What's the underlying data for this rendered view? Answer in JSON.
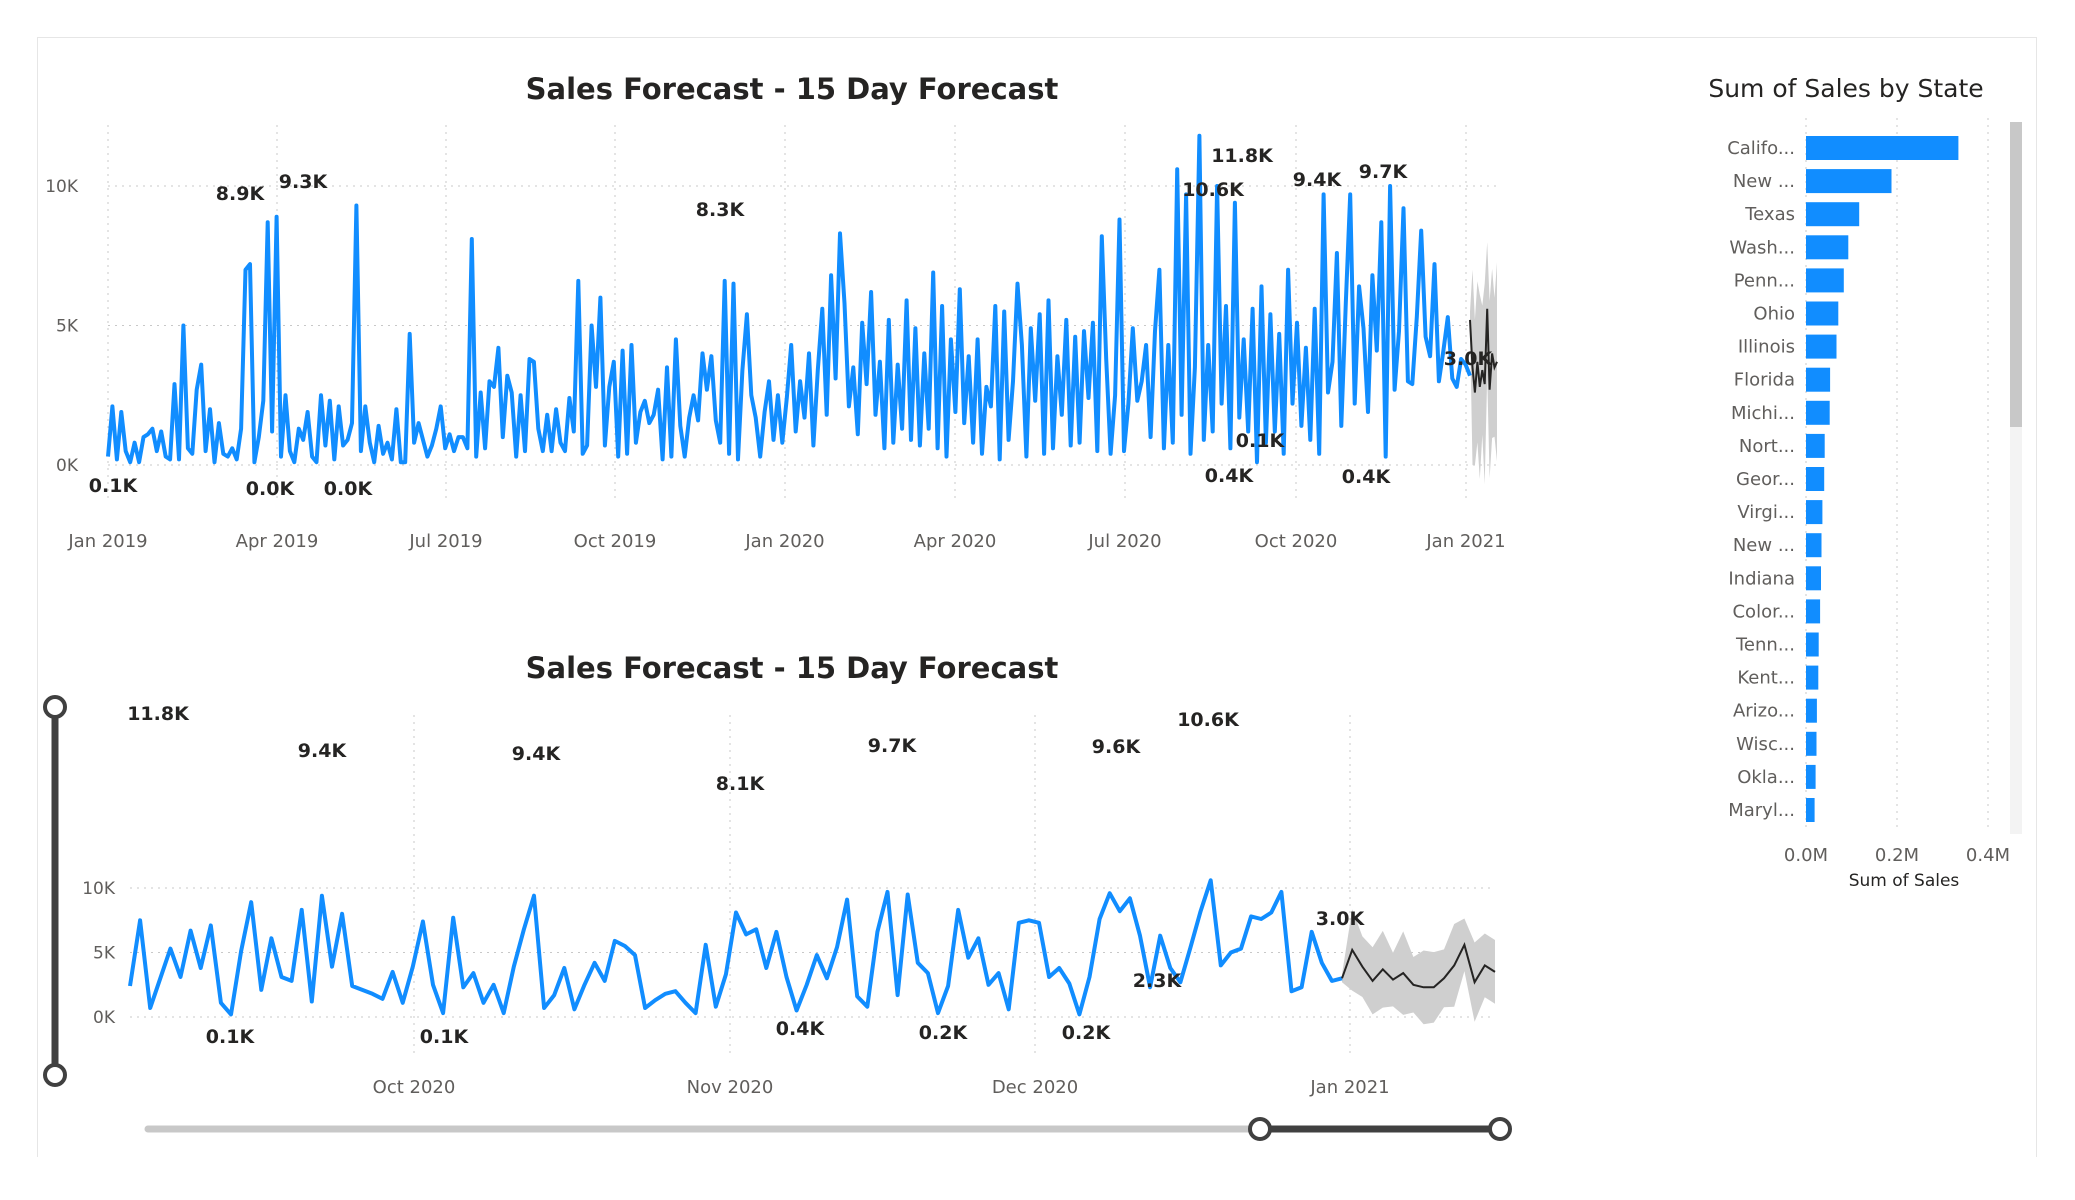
{
  "chart_data": [
    {
      "type": "line",
      "title": "Sales Forecast - 15 Day Forecast",
      "xlabel": "",
      "ylabel": "",
      "x_ticks": [
        "Jan 2019",
        "Apr 2019",
        "Jul 2019",
        "Oct 2019",
        "Jan 2020",
        "Apr 2020",
        "Jul 2020",
        "Oct 2020",
        "Jan 2021"
      ],
      "y_ticks": [
        "0K",
        "5K",
        "10K"
      ],
      "ylim": [
        -1000,
        11500
      ],
      "grid": "dotted",
      "series": [
        {
          "values": [
            300,
            2100,
            200,
            1900,
            500,
            100,
            800,
            100,
            1000,
            1100,
            1300,
            500,
            1200,
            300,
            200,
            2900,
            200,
            5000,
            600,
            400,
            2700,
            3600,
            500,
            2000,
            100,
            1500,
            400,
            300,
            600,
            200,
            1300,
            7000,
            7200,
            100,
            1000,
            2300,
            8700,
            1200,
            8900,
            300,
            2500,
            500,
            100,
            1300,
            900,
            1900,
            300,
            100,
            2500,
            700,
            2300,
            200,
            2100,
            700,
            900,
            1500,
            9300,
            500,
            2100,
            800,
            100,
            1400,
            400,
            800,
            200,
            2000,
            100,
            100,
            4700,
            800,
            1500,
            900,
            300,
            700,
            1300,
            2100,
            600,
            1100,
            500,
            1000,
            1000,
            600,
            8100,
            300,
            2600,
            600,
            3000,
            2800,
            4200,
            1000,
            3200,
            2600,
            300,
            2500,
            500,
            3800,
            3700,
            1300,
            500,
            1800,
            500,
            2000,
            800,
            500,
            2400,
            1200,
            6600,
            400,
            700,
            5000,
            2800,
            6000,
            700,
            2800,
            3700,
            300,
            4100,
            400,
            4300,
            800,
            1900,
            2300,
            1500,
            1800,
            2700,
            200,
            3500,
            300,
            4500,
            1400,
            300,
            1700,
            2500,
            1600,
            4000,
            2700,
            3900,
            1600,
            800,
            6600,
            400,
            6500,
            200,
            3400,
            5400,
            2500,
            1700,
            300,
            1900,
            3000,
            900,
            2500,
            800,
            2400,
            4300,
            1200,
            3000,
            1700,
            4000,
            700,
            3400,
            5600,
            1800,
            6800,
            3100,
            8300,
            5800,
            2100,
            3500,
            1100,
            5100,
            2900,
            6200,
            1800,
            3700,
            600,
            5200,
            800,
            3600,
            1300,
            5900,
            900,
            4900,
            700,
            4000,
            1300,
            6900,
            600,
            5700,
            300,
            4500,
            1900,
            6300,
            1500,
            3900,
            800,
            4500,
            400,
            2800,
            2100,
            5700,
            200,
            5500,
            900,
            3000,
            6500,
            4300,
            300,
            4900,
            2300,
            5400,
            400,
            5900,
            600,
            3900,
            1800,
            5200,
            700,
            4600,
            800,
            4800,
            2400,
            5100,
            500,
            8200,
            3800,
            400,
            2500,
            8800,
            500,
            2200,
            4900,
            2300,
            3000,
            4300,
            1000,
            4800,
            7000,
            600,
            4300,
            800,
            10600,
            1800,
            9700,
            400,
            3500,
            11800,
            900,
            4300,
            1200,
            10000,
            2200,
            5700,
            600,
            9400,
            1700,
            4500,
            1200,
            5600,
            100,
            6400,
            800,
            5400,
            1200,
            4700,
            400,
            7000,
            2200,
            5100,
            1400,
            4200,
            900,
            5600,
            400,
            9700,
            2600,
            3700,
            7600,
            1400,
            5800,
            9700,
            2200,
            6400,
            4900,
            1900,
            6800,
            4100,
            8700,
            300,
            10000,
            2700,
            4800,
            9200,
            3000,
            2900,
            5300,
            8400,
            4600,
            3900,
            7200,
            3000,
            4100,
            5300,
            3100,
            2800,
            3800,
            3600,
            3200
          ]
        },
        {
          "values": [
            5200,
            3500,
            2600,
            3700,
            2800,
            3400,
            2900,
            5600,
            2700,
            4000,
            3500,
            3700
          ]
        }
      ]
    },
    {
      "type": "line",
      "title": "Sales Forecast - 15 Day Forecast",
      "x_ticks": [
        "Oct 2020",
        "Nov 2020",
        "Dec 2020",
        "Jan 2021"
      ],
      "y_ticks": [
        "0K",
        "5K",
        "10K"
      ],
      "ylim": [
        -2000,
        12000
      ],
      "grid": "dotted",
      "series": [
        {
          "values": [
            2400,
            7500,
            700,
            3000,
            5300,
            3100,
            6700,
            3800,
            7100,
            1100,
            200,
            5100,
            8900,
            2100,
            6100,
            3100,
            2800,
            8300,
            1200,
            9400,
            3900,
            8000,
            2400,
            2100,
            1800,
            1400,
            3500,
            1100,
            3900,
            7400,
            2500,
            300,
            7700,
            2300,
            3400,
            1100,
            2500,
            300,
            3900,
            6800,
            9400,
            700,
            1700,
            3800,
            600,
            2500,
            4200,
            2800,
            5900,
            5500,
            4800,
            700,
            1300,
            1800,
            2000,
            1100,
            300,
            5600,
            800,
            3300,
            8100,
            6400,
            6800,
            3800,
            6600,
            3100,
            500,
            2500,
            4800,
            3000,
            5400,
            9100,
            1600,
            800,
            6600,
            9700,
            1700,
            9500,
            4200,
            3400,
            300,
            2400,
            8300,
            4600,
            6100,
            2500,
            3400,
            600,
            7300,
            7500,
            7300,
            3100,
            3800,
            2600,
            200,
            3100,
            7600,
            9600,
            8200,
            9200,
            6300,
            2300,
            6300,
            3800,
            2700,
            5400,
            8200,
            10600,
            4000,
            5000,
            5300,
            7800,
            7600,
            8100,
            9700,
            2000,
            2300,
            6600,
            4200,
            2800,
            3000
          ]
        },
        {
          "values": [
            3000,
            5200,
            3900,
            2800,
            3700,
            2900,
            3400,
            2500,
            2300,
            2300,
            3000,
            4000,
            5600,
            2700,
            4000,
            3500
          ]
        }
      ]
    },
    {
      "type": "bar",
      "orientation": "horizontal",
      "title": "Sum of Sales by State",
      "xlabel": "Sum of Sales",
      "x_ticks": [
        "0.0M",
        "0.2M",
        "0.4M"
      ],
      "xlim": [
        0,
        0.4
      ],
      "categories": [
        "Califo...",
        "New ...",
        "Texas",
        "Wash...",
        "Penn...",
        "Ohio",
        "Illinois",
        "Florida",
        "Michi...",
        "Nort...",
        "Geor...",
        "Virgi...",
        "New ...",
        "Indiana",
        "Color...",
        "Tenn...",
        "Kent...",
        "Arizo...",
        "Wisc...",
        "Okla...",
        "Maryl..."
      ],
      "values": [
        0.335,
        0.188,
        0.117,
        0.093,
        0.083,
        0.071,
        0.067,
        0.053,
        0.052,
        0.041,
        0.04,
        0.036,
        0.034,
        0.033,
        0.031,
        0.028,
        0.027,
        0.024,
        0.023,
        0.021,
        0.019
      ]
    }
  ],
  "labels1": [
    "0.1K",
    "8.9K",
    "9.3K",
    "0.0K",
    "0.0K",
    "8.3K",
    "11.8K",
    "10.6K",
    "9.4K",
    "9.7K",
    "0.1K",
    "0.4K",
    "0.4K",
    "3.0K"
  ],
  "labels2": [
    "11.8K",
    "9.4K",
    "0.1K",
    "9.4K",
    "0.1K",
    "8.1K",
    "0.4K",
    "9.7K",
    "0.2K",
    "9.6K",
    "0.2K",
    "10.6K",
    "2.3K",
    "3.0K"
  ],
  "colors": {
    "series": "#118DFF",
    "forecast_band": "#cfcfcf",
    "forecast_line": "#252423",
    "text": "#252423",
    "axis": "#605E5C"
  }
}
